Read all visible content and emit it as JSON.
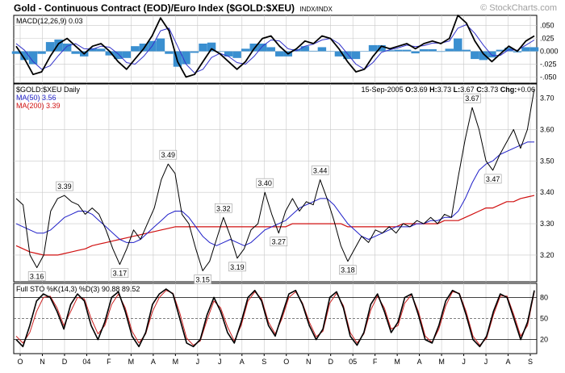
{
  "header": {
    "title": "Gold - Continuous Contract (EOD)/Euro Index ($GOLD:$XEU)",
    "exchange": "INDX/INDX",
    "copyright": "© StockCharts.com"
  },
  "colors": {
    "price": "#000000",
    "ma50": "#1f1fc8",
    "ma200": "#d01010",
    "macd": "#000000",
    "signal": "#3333cc",
    "histogram": "#3a8fd0",
    "sto_k": "#000000",
    "sto_d": "#cc2222",
    "grid": "#c8c8c8"
  },
  "chart_data": [
    {
      "type": "line",
      "panel": "macd",
      "label": "MACD(12,26,9)",
      "value_text": "0.03",
      "ylim": [
        -0.062,
        0.07
      ],
      "y_ticks": [
        {
          "v": 0.05,
          "label": ".050"
        },
        {
          "v": 0.025,
          "label": ".025"
        },
        {
          "v": 0.0,
          "label": "0.000"
        },
        {
          "v": -0.025,
          "label": "-.025"
        },
        {
          "v": -0.05,
          "label": "-.050"
        }
      ],
      "series": [
        {
          "role": "macd",
          "values": [
            0.01,
            -0.015,
            -0.045,
            -0.04,
            -0.01,
            0.015,
            0.025,
            0.01,
            -0.005,
            0.01,
            0.015,
            0.0,
            -0.02,
            -0.035,
            -0.015,
            0.005,
            0.03,
            0.065,
            0.04,
            -0.02,
            -0.05,
            -0.045,
            -0.02,
            0.005,
            -0.005,
            -0.02,
            -0.035,
            -0.02,
            0.005,
            0.025,
            0.03,
            0.01,
            -0.005,
            0.005,
            0.02,
            0.015,
            0.03,
            0.025,
            0.005,
            -0.02,
            -0.04,
            -0.035,
            -0.01,
            0.01,
            0.005,
            0.01,
            0.015,
            0.005,
            0.015,
            0.02,
            0.015,
            0.025,
            0.07,
            0.055,
            0.02,
            -0.005,
            -0.02,
            -0.005,
            0.01,
            0.0,
            0.02,
            0.03
          ]
        },
        {
          "role": "signal",
          "values": [
            0.015,
            0.002,
            -0.02,
            -0.035,
            -0.028,
            -0.008,
            0.01,
            0.015,
            0.005,
            0.004,
            0.01,
            0.008,
            -0.005,
            -0.022,
            -0.025,
            -0.01,
            0.01,
            0.04,
            0.045,
            0.01,
            -0.025,
            -0.042,
            -0.035,
            -0.012,
            -0.004,
            -0.01,
            -0.022,
            -0.025,
            -0.01,
            0.01,
            0.022,
            0.02,
            0.005,
            0.001,
            0.01,
            0.014,
            0.022,
            0.025,
            0.015,
            -0.005,
            -0.025,
            -0.035,
            -0.022,
            -0.002,
            0.003,
            0.007,
            0.012,
            0.009,
            0.011,
            0.016,
            0.016,
            0.02,
            0.045,
            0.052,
            0.035,
            0.012,
            -0.008,
            -0.008,
            0.003,
            0.002,
            0.012,
            0.022
          ]
        }
      ]
    },
    {
      "type": "line",
      "panel": "price",
      "label": "$GOLD:$XEU Daily",
      "ma50_label": "MA(50)",
      "ma50_value": "3.56",
      "ma200_label": "MA(200)",
      "ma200_value": "3.39",
      "quote": {
        "date": "15-Sep-2005",
        "open_label": "O:",
        "open": "3.69",
        "high_label": "H:",
        "high": "3.73",
        "low_label": "L:",
        "low": "3.67",
        "close_label": "C:",
        "close": "3.73",
        "change_label": "Chg:",
        "change": "+0.06"
      },
      "ylim": [
        3.115,
        3.745
      ],
      "y_ticks": [
        3.2,
        3.3,
        3.4,
        3.5,
        3.6,
        3.7
      ],
      "series": [
        {
          "role": "price",
          "values": [
            3.38,
            3.36,
            3.2,
            3.16,
            3.2,
            3.34,
            3.38,
            3.39,
            3.37,
            3.36,
            3.33,
            3.35,
            3.33,
            3.28,
            3.22,
            3.17,
            3.22,
            3.28,
            3.25,
            3.3,
            3.35,
            3.44,
            3.49,
            3.46,
            3.33,
            3.3,
            3.22,
            3.15,
            3.18,
            3.25,
            3.32,
            3.26,
            3.19,
            3.22,
            3.28,
            3.3,
            3.4,
            3.33,
            3.27,
            3.34,
            3.38,
            3.34,
            3.37,
            3.36,
            3.44,
            3.38,
            3.31,
            3.23,
            3.18,
            3.22,
            3.26,
            3.24,
            3.28,
            3.27,
            3.29,
            3.27,
            3.3,
            3.29,
            3.31,
            3.3,
            3.32,
            3.3,
            3.33,
            3.32,
            3.45,
            3.57,
            3.67,
            3.6,
            3.5,
            3.47,
            3.52,
            3.56,
            3.6,
            3.54,
            3.6,
            3.73
          ]
        },
        {
          "role": "ma50",
          "values": [
            3.3,
            3.29,
            3.28,
            3.27,
            3.27,
            3.28,
            3.3,
            3.32,
            3.33,
            3.34,
            3.34,
            3.33,
            3.31,
            3.29,
            3.27,
            3.25,
            3.24,
            3.24,
            3.25,
            3.27,
            3.29,
            3.31,
            3.33,
            3.34,
            3.34,
            3.32,
            3.29,
            3.26,
            3.24,
            3.23,
            3.24,
            3.25,
            3.24,
            3.23,
            3.24,
            3.26,
            3.28,
            3.29,
            3.3,
            3.31,
            3.33,
            3.35,
            3.36,
            3.37,
            3.38,
            3.38,
            3.36,
            3.33,
            3.3,
            3.28,
            3.26,
            3.25,
            3.26,
            3.27,
            3.28,
            3.29,
            3.29,
            3.29,
            3.3,
            3.3,
            3.31,
            3.31,
            3.32,
            3.32,
            3.34,
            3.38,
            3.43,
            3.47,
            3.49,
            3.5,
            3.52,
            3.53,
            3.54,
            3.55,
            3.56,
            3.56
          ]
        },
        {
          "role": "ma200",
          "values": [
            3.23,
            3.22,
            3.21,
            3.205,
            3.2,
            3.2,
            3.2,
            3.205,
            3.21,
            3.215,
            3.22,
            3.23,
            3.235,
            3.24,
            3.245,
            3.25,
            3.255,
            3.26,
            3.265,
            3.27,
            3.275,
            3.28,
            3.285,
            3.29,
            3.29,
            3.29,
            3.29,
            3.29,
            3.29,
            3.29,
            3.29,
            3.29,
            3.29,
            3.29,
            3.29,
            3.29,
            3.29,
            3.29,
            3.29,
            3.29,
            3.3,
            3.3,
            3.3,
            3.3,
            3.3,
            3.3,
            3.3,
            3.3,
            3.29,
            3.29,
            3.29,
            3.29,
            3.29,
            3.29,
            3.29,
            3.29,
            3.3,
            3.3,
            3.3,
            3.3,
            3.3,
            3.3,
            3.31,
            3.31,
            3.31,
            3.32,
            3.33,
            3.34,
            3.35,
            3.35,
            3.36,
            3.37,
            3.37,
            3.38,
            3.385,
            3.39
          ]
        }
      ],
      "annotations": [
        {
          "label": "3.16",
          "i": 3
        },
        {
          "label": "3.39",
          "i": 7
        },
        {
          "label": "3.17",
          "i": 15
        },
        {
          "label": "3.49",
          "i": 22
        },
        {
          "label": "3.15",
          "i": 27
        },
        {
          "label": "3.32",
          "i": 30
        },
        {
          "label": "3.19",
          "i": 32
        },
        {
          "label": "3.40",
          "i": 36
        },
        {
          "label": "3.27",
          "i": 38
        },
        {
          "label": "3.44",
          "i": 44
        },
        {
          "label": "3.18",
          "i": 48
        },
        {
          "label": "3.67",
          "i": 66
        },
        {
          "label": "3.47",
          "i": 69
        }
      ]
    },
    {
      "type": "line",
      "panel": "stochastic",
      "label": "Full STO %K(14,3) %D(3)",
      "k_value": "90.88",
      "d_value": "89.52",
      "ylim": [
        0,
        100
      ],
      "y_ticks": [
        20,
        50,
        80
      ],
      "series": [
        {
          "role": "sto_k",
          "values": [
            20,
            10,
            40,
            75,
            85,
            80,
            60,
            35,
            70,
            85,
            75,
            40,
            20,
            45,
            80,
            88,
            60,
            25,
            10,
            30,
            70,
            85,
            92,
            85,
            50,
            15,
            10,
            20,
            55,
            80,
            60,
            30,
            15,
            45,
            80,
            90,
            75,
            40,
            25,
            55,
            85,
            90,
            70,
            40,
            20,
            35,
            80,
            88,
            65,
            25,
            12,
            30,
            70,
            85,
            60,
            30,
            45,
            80,
            85,
            55,
            20,
            15,
            40,
            75,
            90,
            85,
            55,
            20,
            10,
            25,
            60,
            85,
            80,
            50,
            20,
            45,
            90
          ]
        },
        {
          "role": "sto_d",
          "values": [
            25,
            15,
            30,
            60,
            80,
            82,
            65,
            40,
            60,
            80,
            78,
            50,
            28,
            40,
            70,
            85,
            65,
            32,
            15,
            28,
            60,
            80,
            90,
            86,
            58,
            22,
            12,
            18,
            48,
            75,
            65,
            38,
            18,
            40,
            75,
            88,
            78,
            45,
            28,
            50,
            80,
            88,
            72,
            45,
            24,
            32,
            72,
            86,
            68,
            30,
            15,
            28,
            62,
            82,
            65,
            35,
            40,
            72,
            84,
            60,
            25,
            16,
            35,
            68,
            88,
            86,
            60,
            25,
            12,
            22,
            55,
            82,
            82,
            55,
            25,
            40,
            88
          ]
        }
      ]
    }
  ],
  "x_axis": {
    "labels": [
      "O",
      "N",
      "D",
      "04",
      "F",
      "M",
      "A",
      "M",
      "J",
      "J",
      "A",
      "S",
      "O",
      "N",
      "D",
      "05",
      "F",
      "M",
      "A",
      "M",
      "J",
      "J",
      "A",
      "S"
    ]
  }
}
